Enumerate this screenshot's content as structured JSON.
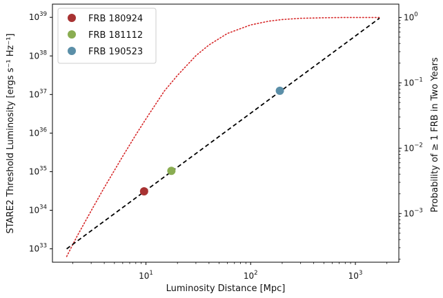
{
  "chart_data": {
    "type": "scatter",
    "xlabel": "Luminosity Distance [Mpc]",
    "ylabel_left": "STARE2 Threshold Luminosity [ergs s⁻¹ Hz⁻¹]",
    "ylabel_right": "Probability of ≥ 1 FRB in Two Years",
    "x_scale": "log",
    "y_scale_left": "log",
    "y_scale_right": "log",
    "xlim": [
      1.28,
      2600
    ],
    "ylim_left": [
      4.5e+32,
      2.2e+39
    ],
    "ylim_right": [
      0.00018,
      1.6
    ],
    "x_ticks": [
      {
        "base": "10",
        "exp": "1",
        "value": 10
      },
      {
        "base": "10",
        "exp": "2",
        "value": 100
      },
      {
        "base": "10",
        "exp": "3",
        "value": 1000
      }
    ],
    "y_ticks_left": [
      {
        "base": "10",
        "exp": "33",
        "value": 1e+33
      },
      {
        "base": "10",
        "exp": "34",
        "value": 1e+34
      },
      {
        "base": "10",
        "exp": "35",
        "value": 1e+35
      },
      {
        "base": "10",
        "exp": "36",
        "value": 1e+36
      },
      {
        "base": "10",
        "exp": "37",
        "value": 1e+37
      },
      {
        "base": "10",
        "exp": "38",
        "value": 1e+38
      },
      {
        "base": "10",
        "exp": "39",
        "value": 1e+39
      }
    ],
    "y_ticks_right": [
      {
        "base": "10",
        "exp": "0",
        "value": 1
      },
      {
        "base": "10",
        "exp": "−1",
        "value": 0.1
      },
      {
        "base": "10",
        "exp": "−2",
        "value": 0.01
      },
      {
        "base": "10",
        "exp": "−3",
        "value": 0.001
      }
    ],
    "threshold_line": {
      "style": "dashed",
      "color": "#000000",
      "points": [
        [
          1.75,
          1e+33
        ],
        [
          1700,
          9.5e+38
        ]
      ]
    },
    "probability_curve": {
      "style": "dotted",
      "color": "#d62728",
      "axis": "right",
      "points": [
        [
          1.75,
          0.00022
        ],
        [
          2.2,
          0.00045
        ],
        [
          3,
          0.0011
        ],
        [
          4,
          0.0025
        ],
        [
          6,
          0.0075
        ],
        [
          8,
          0.016
        ],
        [
          10,
          0.028
        ],
        [
          15,
          0.075
        ],
        [
          20,
          0.13
        ],
        [
          30,
          0.26
        ],
        [
          40,
          0.38
        ],
        [
          60,
          0.57
        ],
        [
          100,
          0.77
        ],
        [
          150,
          0.88
        ],
        [
          200,
          0.93
        ],
        [
          300,
          0.97
        ],
        [
          500,
          0.99
        ],
        [
          800,
          1.0
        ],
        [
          1200,
          1.0
        ],
        [
          1700,
          1.0
        ]
      ]
    },
    "series": [
      {
        "name": "FRB 180924",
        "color": "#a83232",
        "x": 9.6,
        "y": 3.1e+34
      },
      {
        "name": "FRB 181112",
        "color": "#8aad52",
        "x": 17.5,
        "y": 1.05e+35
      },
      {
        "name": "FRB 190523",
        "color": "#5b8fa8",
        "x": 190,
        "y": 1.25e+37
      }
    ],
    "legend_position": "upper-left",
    "grid": false
  }
}
